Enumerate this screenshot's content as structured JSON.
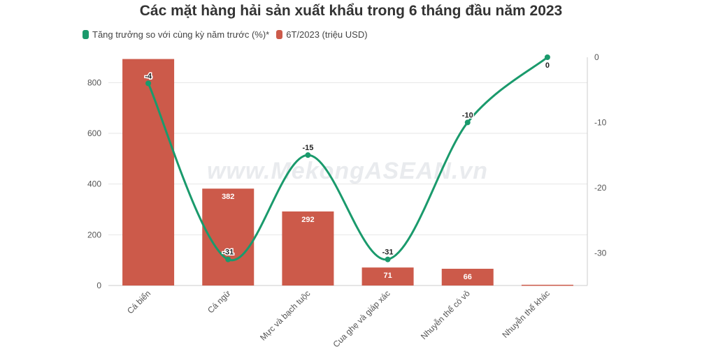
{
  "title": "Các mặt hàng hải sản xuất khẩu trong 6 tháng đầu năm 2023",
  "watermark": "www.MekongASEAN.vn",
  "colors": {
    "bar": "#cc5a4a",
    "line": "#1a9a6c",
    "grid": "#e6e6e6",
    "axis": "#cccccc"
  },
  "chart_data": {
    "type": "bar",
    "title": "Các mặt hàng hải sản xuất khẩu trong 6 tháng đầu năm 2023",
    "categories": [
      "Cá biển",
      "Cá ngừ",
      "Mực và bạch tuộc",
      "Cua ghẹ và giáp xác",
      "Nhuyễn thể có vỏ",
      "Nhuyễn thể khác"
    ],
    "series": [
      {
        "name": "6T/2023 (triệu USD)",
        "type": "bar",
        "axis": "left",
        "values": [
          893,
          382,
          292,
          71,
          66,
          3
        ],
        "labels": [
          "",
          "382",
          "292",
          "71",
          "66",
          ""
        ]
      },
      {
        "name": "Tăng trưởng so với cùng kỳ năm trước (%)*",
        "type": "line",
        "axis": "right",
        "values": [
          -4,
          -31,
          -15,
          -31,
          -10,
          0
        ],
        "labels": [
          "-4",
          "-31",
          "-15",
          "-31",
          "-10",
          "0"
        ]
      }
    ],
    "y_left": {
      "ticks": [
        0,
        200,
        400,
        600,
        800
      ],
      "range": [
        0,
        900
      ]
    },
    "y_right": {
      "ticks": [
        0,
        -10,
        -20,
        -30
      ],
      "range": [
        -35,
        0
      ]
    },
    "grid": true,
    "legend": "top-left"
  }
}
